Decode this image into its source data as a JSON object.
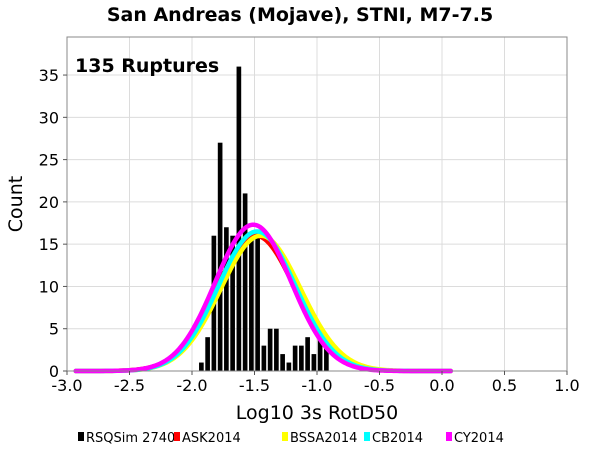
{
  "chart_data": {
    "type": "histogram",
    "title": "San Andreas (Mojave), STNI, M7-7.5",
    "annotation": "135 Ruptures",
    "xlabel": "Log10 3s RotD50",
    "ylabel": "Count",
    "xlim": [
      -3.0,
      1.0
    ],
    "ylim": [
      0,
      39.5
    ],
    "x_ticks": [
      "-3.0",
      "-2.5",
      "-2.0",
      "-1.5",
      "-1.0",
      "-0.5",
      "0.0",
      "0.5",
      "1.0"
    ],
    "y_ticks": [
      "0",
      "5",
      "10",
      "15",
      "20",
      "25",
      "30",
      "35"
    ],
    "grid": true,
    "legend_position": "bottom",
    "bin_width": 0.05,
    "histogram": {
      "name": "RSQSim 2740",
      "color": "#000000",
      "bin_starts": [
        -1.95,
        -1.9,
        -1.85,
        -1.8,
        -1.75,
        -1.7,
        -1.65,
        -1.6,
        -1.55,
        -1.5,
        -1.45,
        -1.4,
        -1.35,
        -1.3,
        -1.25,
        -1.2,
        -1.15,
        -1.1,
        -1.05,
        -1.0,
        -0.95,
        -0.9,
        -0.85,
        -0.8,
        -0.75,
        -0.7,
        -0.65,
        -0.6
      ],
      "counts": [
        1,
        4,
        16,
        27,
        17,
        16,
        36,
        21,
        16,
        16,
        3,
        5,
        5,
        2,
        1,
        3,
        3,
        4,
        2,
        5,
        4,
        0,
        0,
        0,
        0,
        0,
        0,
        0
      ]
    },
    "series": [
      {
        "name": "ASK2014",
        "color": "#ff0000",
        "mean": -1.49,
        "std": 0.315,
        "peak": 16.0
      },
      {
        "name": "BSSA2014",
        "color": "#ffff00",
        "mean": -1.45,
        "std": 0.32,
        "peak": 16.0
      },
      {
        "name": "CB2014",
        "color": "#00ffff",
        "mean": -1.48,
        "std": 0.31,
        "peak": 16.5
      },
      {
        "name": "CY2014",
        "color": "#ff00ff",
        "mean": -1.51,
        "std": 0.305,
        "peak": 17.3
      }
    ]
  }
}
